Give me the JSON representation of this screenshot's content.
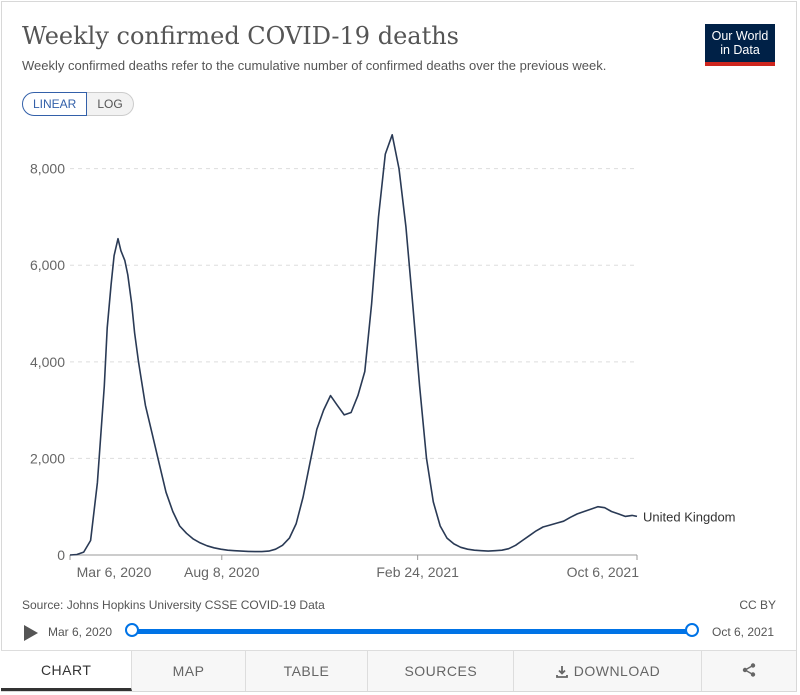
{
  "header": {
    "title": "Weekly confirmed COVID-19 deaths",
    "subtitle": "Weekly confirmed deaths refer to the cumulative number of confirmed deaths over the previous week.",
    "logo_line1": "Our World",
    "logo_line2": "in Data"
  },
  "scale_toggle": {
    "linear": "LINEAR",
    "log": "LOG"
  },
  "colors": {
    "line": "#2a3a55",
    "accent": "#0073e6",
    "logo_bg": "#002147",
    "logo_bar": "#ce261e"
  },
  "chart_data": {
    "type": "line",
    "title": "Weekly confirmed COVID-19 deaths",
    "xlabel": "",
    "ylabel": "",
    "ylim": [
      0,
      8800
    ],
    "y_ticks": [
      0,
      2000,
      4000,
      6000,
      8000
    ],
    "y_tick_labels": [
      "0",
      "2,000",
      "4,000",
      "6,000",
      "8,000"
    ],
    "x_tick_labels": [
      "Mar 6, 2020",
      "Aug 8, 2020",
      "Feb 24, 2021",
      "Oct 6, 2021"
    ],
    "x_tick_days": [
      0,
      155,
      355,
      579
    ],
    "x_range_days": [
      0,
      579
    ],
    "grid": true,
    "series": [
      {
        "name": "United Kingdom",
        "x_days": [
          0,
          7,
          14,
          21,
          28,
          35,
          38,
          42,
          45,
          49,
          52,
          56,
          59,
          63,
          66,
          70,
          77,
          84,
          91,
          98,
          105,
          112,
          119,
          126,
          133,
          140,
          147,
          154,
          161,
          168,
          175,
          182,
          189,
          196,
          203,
          210,
          217,
          224,
          231,
          238,
          245,
          252,
          259,
          266,
          273,
          280,
          287,
          294,
          301,
          308,
          315,
          322,
          329,
          336,
          343,
          350,
          357,
          364,
          371,
          378,
          385,
          392,
          399,
          406,
          413,
          420,
          427,
          434,
          441,
          448,
          455,
          462,
          469,
          476,
          483,
          490,
          497,
          504,
          511,
          518,
          525,
          532,
          539,
          546,
          553,
          560,
          567,
          574,
          579
        ],
        "values": [
          0,
          10,
          60,
          300,
          1500,
          3500,
          4700,
          5600,
          6200,
          6550,
          6300,
          6100,
          5800,
          5200,
          4600,
          4000,
          3100,
          2500,
          1900,
          1300,
          900,
          600,
          450,
          330,
          250,
          190,
          150,
          120,
          100,
          90,
          80,
          75,
          70,
          70,
          80,
          120,
          200,
          350,
          650,
          1200,
          1900,
          2600,
          3000,
          3300,
          3100,
          2900,
          2950,
          3300,
          3800,
          5200,
          7000,
          8300,
          8700,
          8000,
          6800,
          5200,
          3500,
          2000,
          1100,
          600,
          350,
          230,
          160,
          120,
          100,
          90,
          80,
          90,
          100,
          130,
          200,
          300,
          400,
          500,
          580,
          620,
          660,
          700,
          780,
          850,
          900,
          950,
          1000,
          980,
          900,
          850,
          800,
          820,
          800
        ]
      }
    ],
    "series_label": "United Kingdom"
  },
  "footer": {
    "source": "Source: Johns Hopkins University CSSE COVID-19 Data",
    "license": "CC BY"
  },
  "timeline": {
    "start_label": "Mar 6, 2020",
    "end_label": "Oct 6, 2021"
  },
  "tabs": {
    "chart": "CHART",
    "map": "MAP",
    "table": "TABLE",
    "sources": "SOURCES",
    "download": "DOWNLOAD"
  }
}
